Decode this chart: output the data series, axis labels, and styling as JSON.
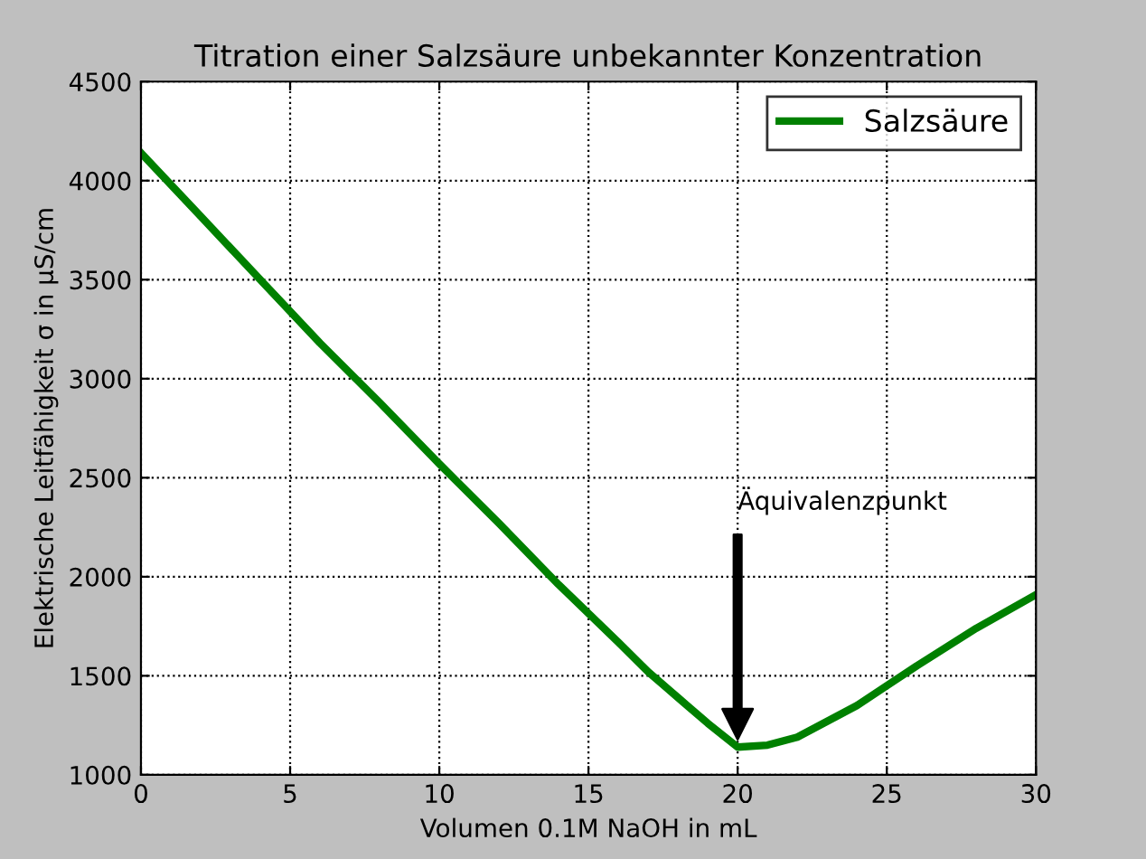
{
  "chart_data": {
    "type": "line",
    "title": "Titration einer Salzsäure unbekannter Konzentration",
    "xlabel": "Volumen 0.1M NaOH in mL",
    "ylabel": "Elektrische Leitfähigkeit σ in µS/cm",
    "x": [
      0,
      2,
      4,
      6,
      8,
      10,
      12,
      14,
      16,
      17,
      18,
      19,
      20,
      21,
      22,
      24,
      26,
      28,
      30
    ],
    "series": [
      {
        "name": "Salzsäure",
        "color": "#008000",
        "values": [
          4140,
          3820,
          3500,
          3180,
          2880,
          2570,
          2270,
          1960,
          1670,
          1520,
          1390,
          1260,
          1140,
          1150,
          1190,
          1350,
          1550,
          1740,
          1910
        ]
      }
    ],
    "xlim": [
      0,
      30
    ],
    "xticks": [
      0,
      5,
      10,
      15,
      20,
      25,
      30
    ],
    "ylim": [
      1000,
      4500
    ],
    "yticks": [
      1000,
      1500,
      2000,
      2500,
      3000,
      3500,
      4000,
      4500
    ],
    "grid": true,
    "legend": "top right",
    "line_style": "solid",
    "marker": "none",
    "annotations": [
      "Äquivalenzpunkt"
    ]
  }
}
